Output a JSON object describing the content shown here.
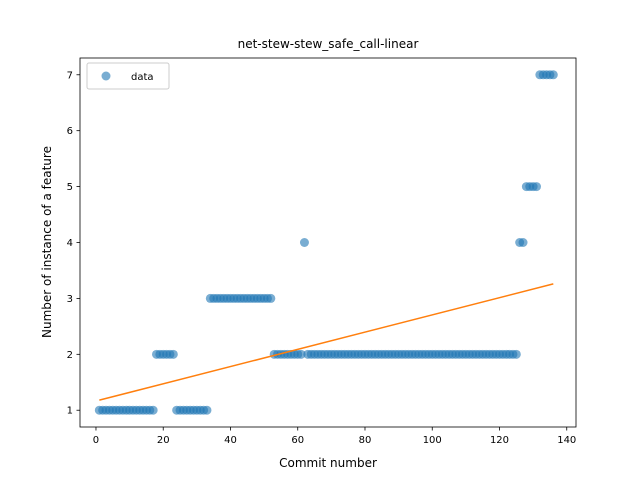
{
  "chart_data": {
    "type": "scatter",
    "title": "net-stew-stew_safe_call-linear",
    "xlabel": "Commit number",
    "ylabel": "Number of instance of a feature",
    "xlim": [
      -4.75,
      142.75
    ],
    "ylim": [
      0.7,
      7.3
    ],
    "xticks": [
      0,
      20,
      40,
      60,
      80,
      100,
      120,
      140
    ],
    "yticks": [
      1,
      2,
      3,
      4,
      5,
      6,
      7
    ],
    "grid": false,
    "legend": {
      "placement": "top-left",
      "entries": [
        "data"
      ]
    },
    "colors": {
      "data": "#1f77b4",
      "fit": "#ff7f0e"
    },
    "series": [
      {
        "name": "data",
        "kind": "scatter",
        "x": [
          1,
          2,
          3,
          4,
          5,
          6,
          7,
          8,
          9,
          10,
          11,
          12,
          13,
          14,
          15,
          16,
          17,
          18,
          19,
          20,
          21,
          22,
          23,
          24,
          25,
          26,
          27,
          28,
          29,
          30,
          31,
          32,
          33,
          34,
          35,
          36,
          37,
          38,
          39,
          40,
          41,
          42,
          43,
          44,
          45,
          46,
          47,
          48,
          49,
          50,
          51,
          52,
          53,
          54,
          55,
          56,
          57,
          58,
          59,
          60,
          61,
          62,
          63,
          64,
          65,
          66,
          67,
          68,
          69,
          70,
          71,
          72,
          73,
          74,
          75,
          76,
          77,
          78,
          79,
          80,
          81,
          82,
          83,
          84,
          85,
          86,
          87,
          88,
          89,
          90,
          91,
          92,
          93,
          94,
          95,
          96,
          97,
          98,
          99,
          100,
          101,
          102,
          103,
          104,
          105,
          106,
          107,
          108,
          109,
          110,
          111,
          112,
          113,
          114,
          115,
          116,
          117,
          118,
          119,
          120,
          121,
          122,
          123,
          124,
          125,
          126,
          127,
          128,
          129,
          130,
          131,
          132,
          133,
          134,
          135,
          136
        ],
        "y": [
          1,
          1,
          1,
          1,
          1,
          1,
          1,
          1,
          1,
          1,
          1,
          1,
          1,
          1,
          1,
          1,
          1,
          2,
          2,
          2,
          2,
          2,
          2,
          1,
          1,
          1,
          1,
          1,
          1,
          1,
          1,
          1,
          1,
          3,
          3,
          3,
          3,
          3,
          3,
          3,
          3,
          3,
          3,
          3,
          3,
          3,
          3,
          3,
          3,
          3,
          3,
          3,
          2,
          2,
          2,
          2,
          2,
          2,
          2,
          2,
          2,
          4,
          2,
          2,
          2,
          2,
          2,
          2,
          2,
          2,
          2,
          2,
          2,
          2,
          2,
          2,
          2,
          2,
          2,
          2,
          2,
          2,
          2,
          2,
          2,
          2,
          2,
          2,
          2,
          2,
          2,
          2,
          2,
          2,
          2,
          2,
          2,
          2,
          2,
          2,
          2,
          2,
          2,
          2,
          2,
          2,
          2,
          2,
          2,
          2,
          2,
          2,
          2,
          2,
          2,
          2,
          2,
          2,
          2,
          2,
          2,
          2,
          2,
          2,
          2,
          4,
          4,
          5,
          5,
          5,
          5,
          7,
          7,
          7,
          7,
          7
        ]
      },
      {
        "kind": "line",
        "x": [
          1,
          136
        ],
        "y": [
          1.18,
          3.26
        ]
      }
    ]
  }
}
